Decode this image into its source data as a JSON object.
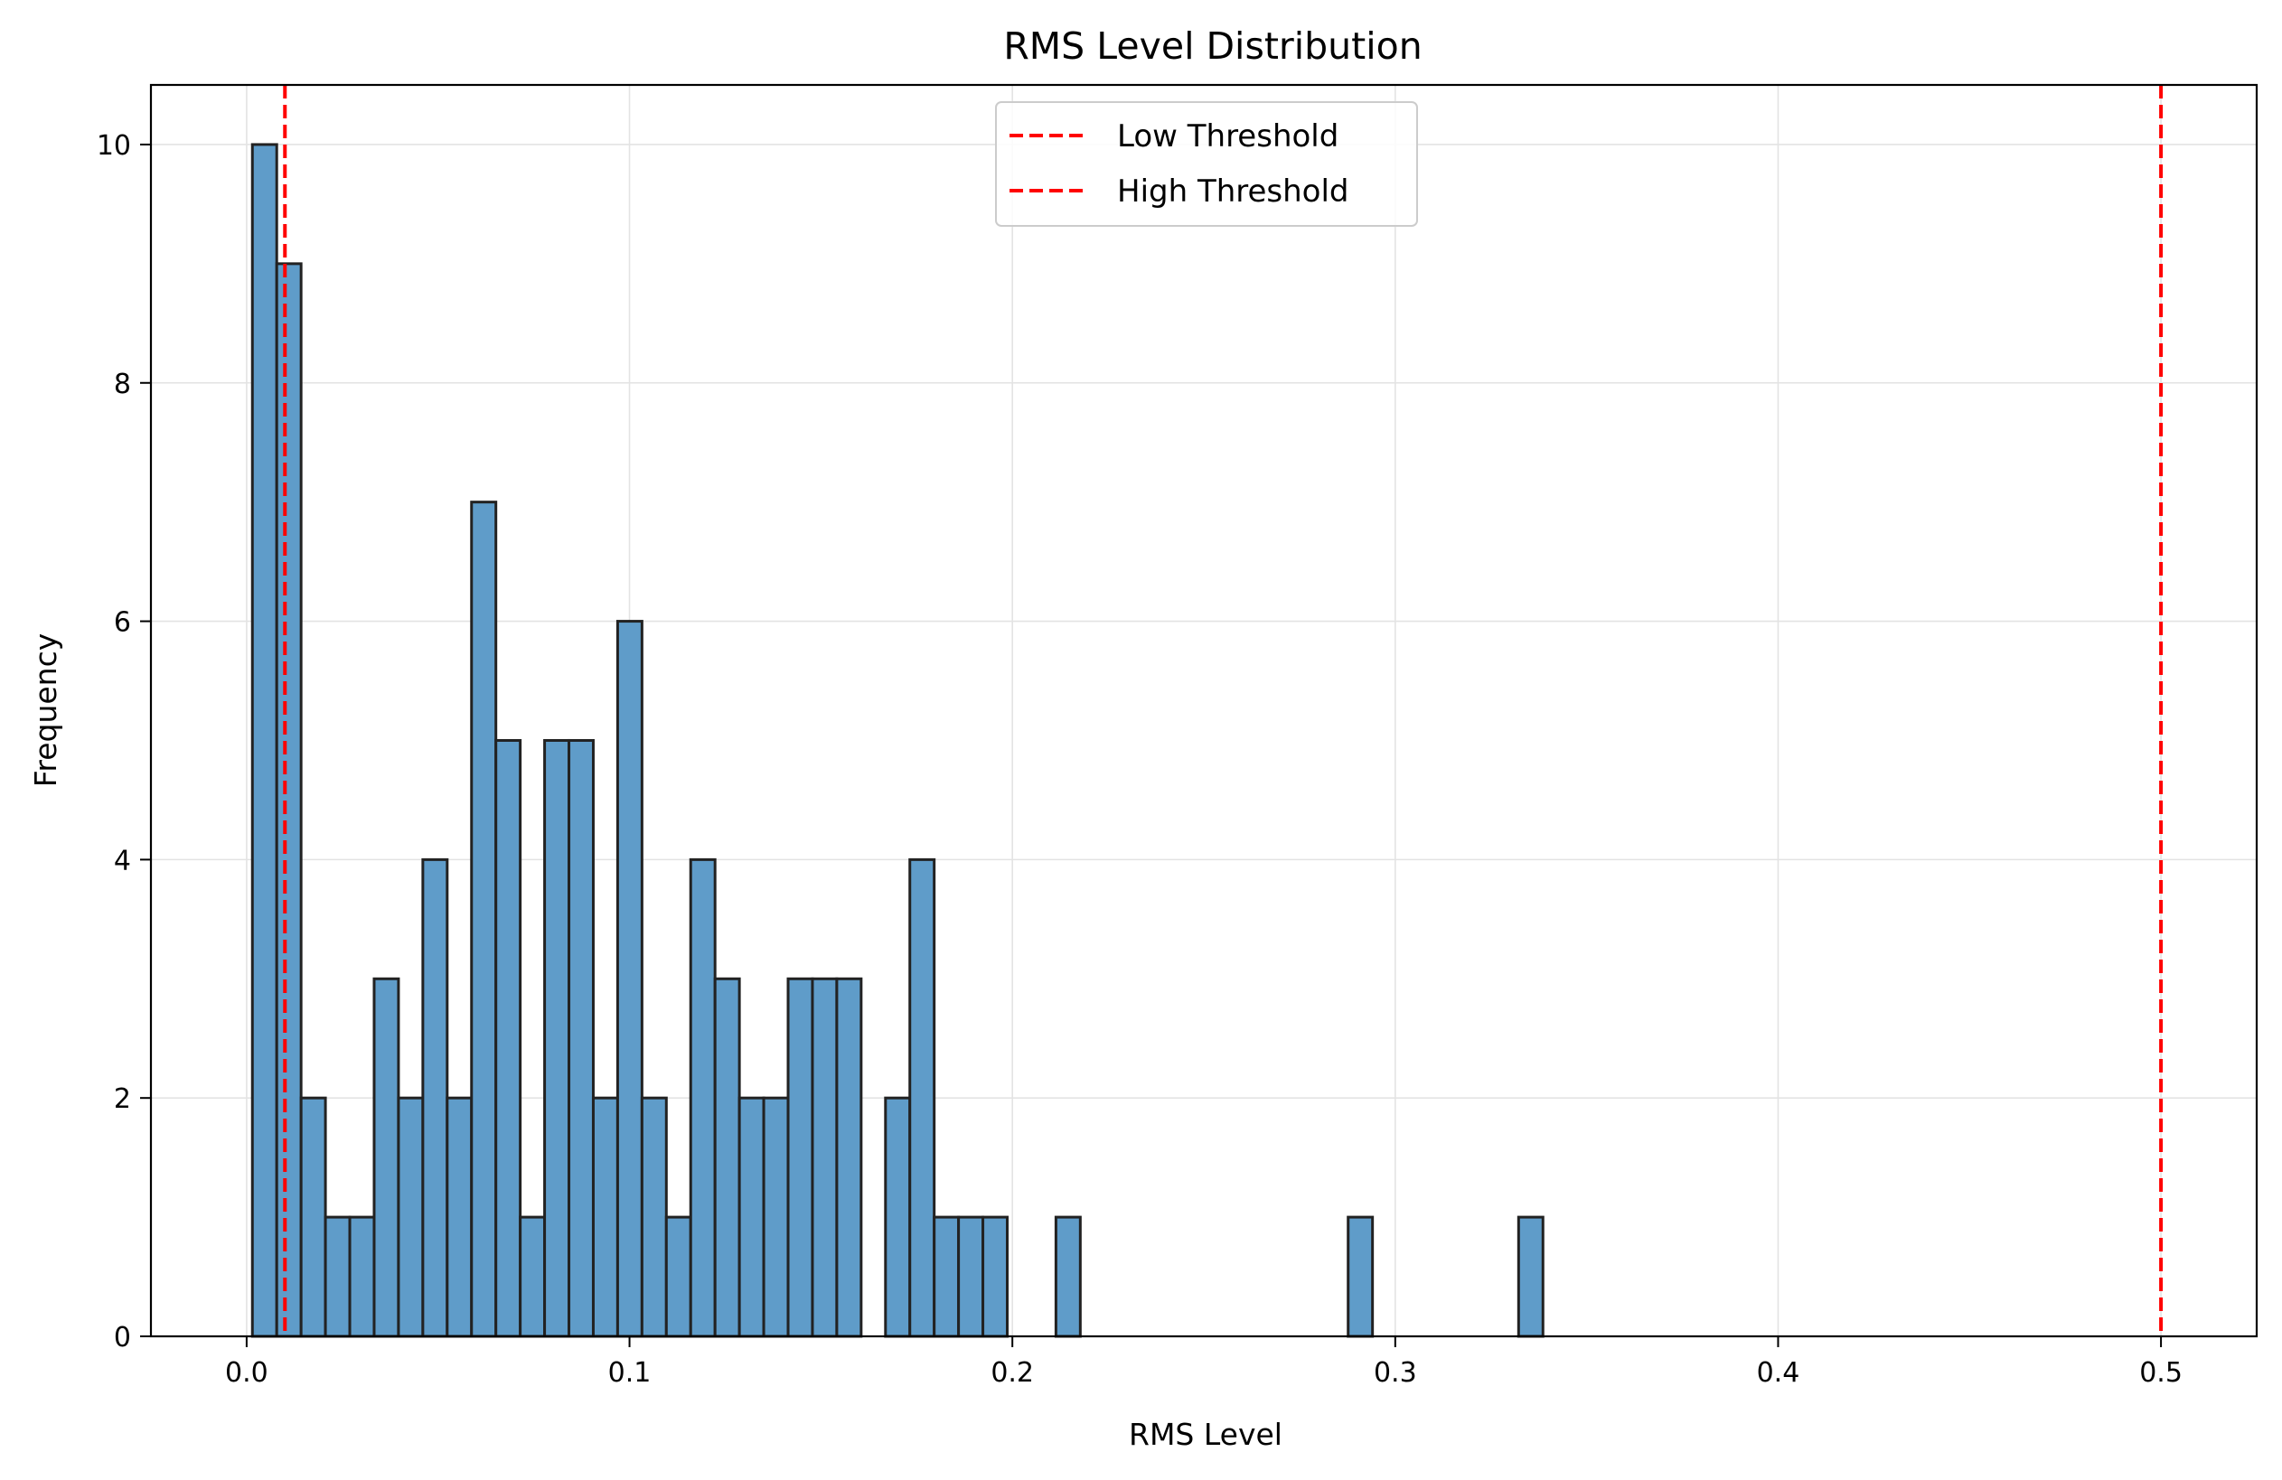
{
  "chart_data": {
    "type": "bar",
    "subtype": "histogram",
    "title": "RMS Level Distribution",
    "xlabel": "RMS Level",
    "ylabel": "Frequency",
    "xlim": [
      -0.025,
      0.525
    ],
    "ylim": [
      0,
      10.5
    ],
    "xticks": [
      0.0,
      0.1,
      0.2,
      0.3,
      0.4,
      0.5
    ],
    "xtick_labels": [
      "0.0",
      "0.1",
      "0.2",
      "0.3",
      "0.4",
      "0.5"
    ],
    "yticks": [
      0,
      2,
      4,
      6,
      8,
      10
    ],
    "ytick_labels": [
      "0",
      "2",
      "4",
      "6",
      "8",
      "10"
    ],
    "grid": true,
    "legend_position": "top-center",
    "bin_start": 0.0015,
    "bin_width": 0.00636,
    "counts": [
      10,
      9,
      2,
      1,
      1,
      3,
      2,
      4,
      2,
      7,
      5,
      1,
      5,
      5,
      2,
      6,
      2,
      1,
      4,
      3,
      2,
      2,
      3,
      3,
      3,
      0,
      2,
      4,
      1,
      1,
      1,
      0,
      0,
      1,
      0,
      0,
      0,
      0,
      0,
      0,
      0,
      0,
      0,
      0,
      0,
      1,
      0,
      0,
      0,
      0,
      0,
      0,
      1
    ],
    "bar_color": "#5f9cc9",
    "bar_edge_color": "#222222",
    "threshold_lines": [
      {
        "name": "Low Threshold",
        "x": 0.01,
        "color": "#ff0000"
      },
      {
        "name": "High Threshold",
        "x": 0.5,
        "color": "#ff0000"
      }
    ]
  }
}
